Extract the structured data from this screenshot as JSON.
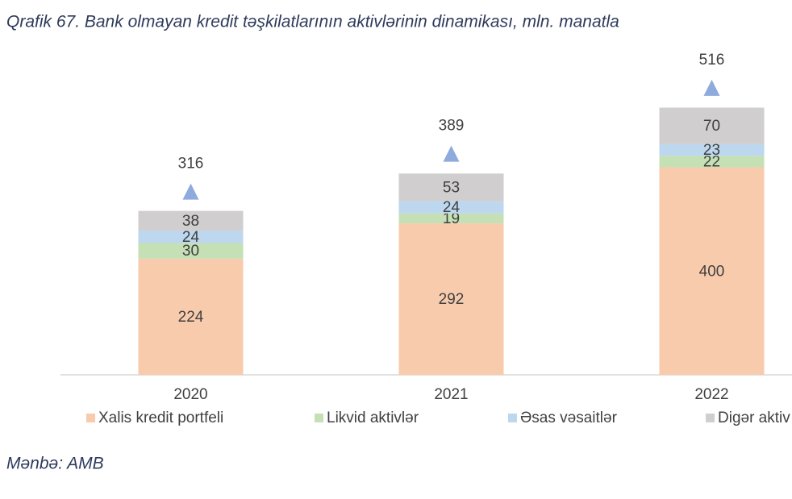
{
  "title": "Qrafik 67. Bank olmayan kredit təşkilatlarının aktivlərinin dinamikası, mln. manatla",
  "source": "Mənbə: AMB",
  "chart_data": {
    "type": "stacked-bar",
    "categories": [
      "2020",
      "2021",
      "2022"
    ],
    "series": [
      {
        "name": "Xalis kredit portfeli",
        "color": "#f8cbad",
        "values": [
          224,
          292,
          400
        ]
      },
      {
        "name": "Likvid aktivlər",
        "color": "#c5e0b4",
        "values": [
          30,
          19,
          22
        ]
      },
      {
        "name": "Əsas vəsaitlər",
        "color": "#bdd7ee",
        "values": [
          24,
          24,
          23
        ]
      },
      {
        "name": "Digər aktiv",
        "color": "#d0cece",
        "values": [
          38,
          53,
          70
        ]
      }
    ],
    "totals": [
      316,
      389,
      516
    ],
    "totals_color": "#8faadc",
    "ylim": [
      0,
      550
    ]
  }
}
